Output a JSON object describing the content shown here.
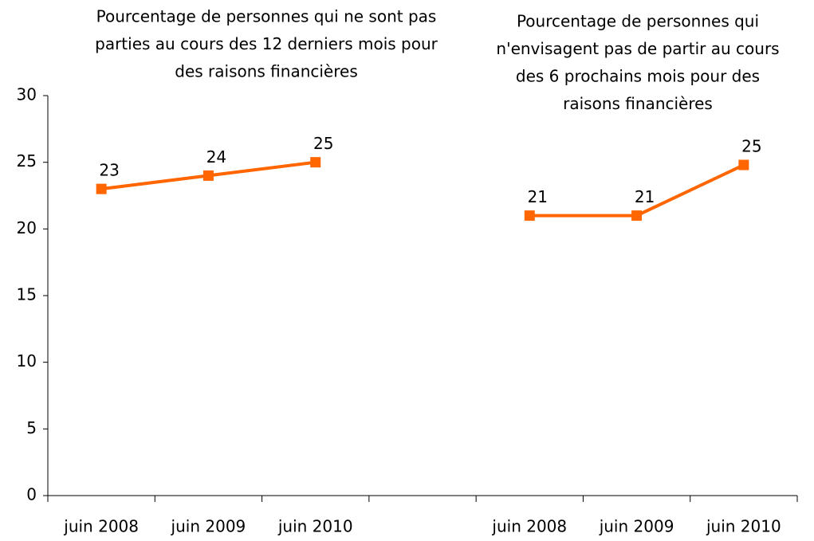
{
  "chart_data": {
    "type": "line",
    "annotations": [
      {
        "lines": [
          "Pourcentage de personnes qui ne sont pas",
          "parties au cours des 12 derniers mois pour",
          "des raisons financières"
        ]
      },
      {
        "lines": [
          "Pourcentage de personnes qui",
          "n'envisagent pas de partir au cours",
          "des 6 prochains mois pour des",
          "raisons financières"
        ]
      }
    ],
    "categories": [
      "juin 2008",
      "juin 2009",
      "juin 2010",
      null,
      "juin 2008",
      "juin 2009",
      "juin 2010"
    ],
    "series": [
      {
        "color": "#ff6600",
        "values": [
          23,
          24,
          25,
          null,
          21,
          21,
          24.8
        ],
        "value_labels": [
          "23",
          "24",
          "25",
          null,
          "21",
          "21",
          "25"
        ]
      }
    ],
    "ylim": [
      0,
      30
    ],
    "yticks": [
      0,
      5,
      10,
      15,
      20,
      25,
      30
    ],
    "grid": false
  }
}
